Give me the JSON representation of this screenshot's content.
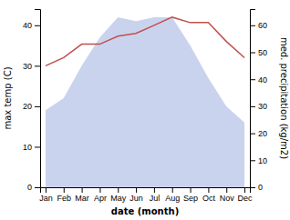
{
  "chart_data": {
    "type": "line",
    "xlabel": "date (month)",
    "ylabel": "max temp (C)",
    "y2label": "med. precipitation (kg/m2)",
    "categories": [
      "Jan",
      "Feb",
      "Mar",
      "Apr",
      "May",
      "Jun",
      "Jul",
      "Aug",
      "Sep",
      "Oct",
      "Nov",
      "Dec"
    ],
    "series": [
      {
        "type": "area",
        "color": "#b8c4e8",
        "values": [
          19,
          22,
          30,
          37,
          42,
          41,
          42,
          42,
          35,
          27,
          20,
          16
        ]
      },
      {
        "type": "line",
        "color": "#c0504d",
        "axis": "y2",
        "values": [
          45,
          48,
          53,
          53,
          56,
          57,
          60,
          63,
          61,
          61,
          54,
          48
        ]
      }
    ],
    "ylim": [
      0,
      44
    ],
    "yticks": [
      0,
      10,
      20,
      30,
      40
    ],
    "y2lim": [
      0,
      66
    ],
    "y2ticks": [
      0,
      10,
      20,
      30,
      40,
      50,
      60
    ]
  }
}
